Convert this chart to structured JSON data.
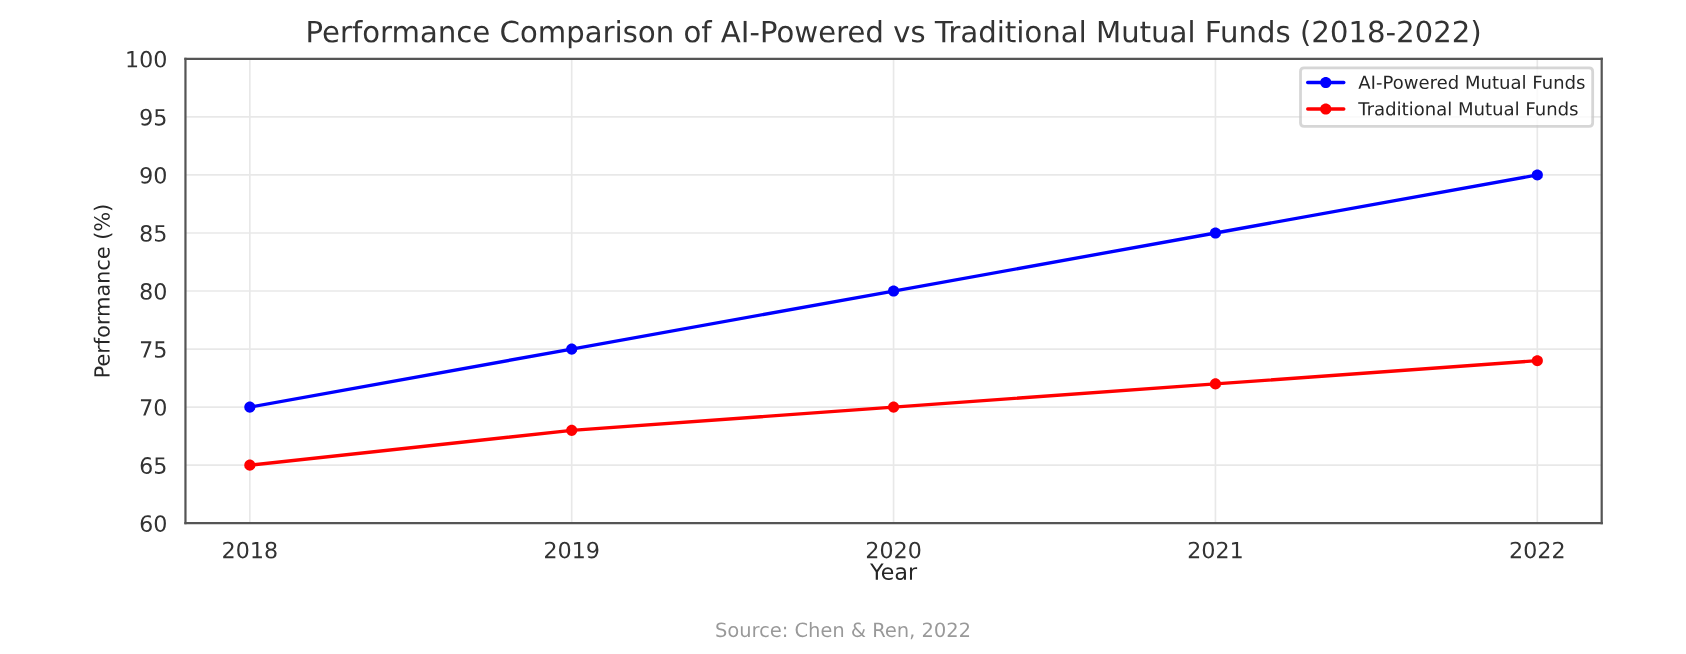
{
  "chart_data": {
    "type": "line",
    "title": "Performance Comparison of AI-Powered vs Traditional Mutual Funds (2018-2022)",
    "xlabel": "Year",
    "ylabel": "Performance (%)",
    "x": [
      2018,
      2019,
      2020,
      2021,
      2022
    ],
    "series": [
      {
        "name": "AI-Powered Mutual Funds",
        "color": "#0000ff",
        "values": [
          70,
          75,
          80,
          85,
          90
        ]
      },
      {
        "name": "Traditional Mutual Funds",
        "color": "#ff0000",
        "values": [
          65,
          68,
          70,
          72,
          74
        ]
      }
    ],
    "xlim": [
      2017.8,
      2022.2
    ],
    "xticks": [
      2018,
      2019,
      2020,
      2021,
      2022
    ],
    "ylim": [
      60,
      100
    ],
    "yticks": [
      60,
      65,
      70,
      75,
      80,
      85,
      90,
      95,
      100
    ],
    "grid": true,
    "legend": "top right",
    "marker": "circle",
    "line_style": "solid",
    "annotations": [
      "Source: Chen & Ren, 2022"
    ]
  }
}
